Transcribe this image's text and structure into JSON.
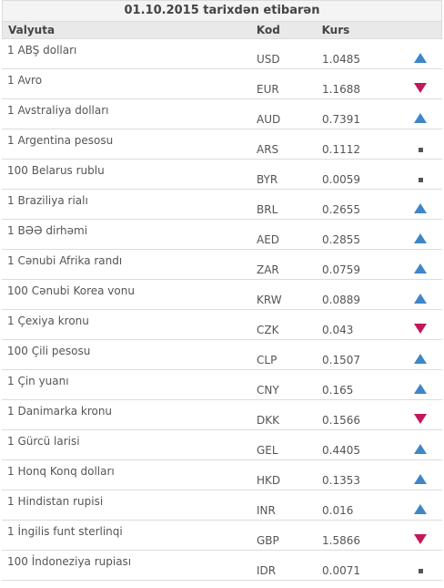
{
  "header": {
    "date_title": "01.10.2015 tarixdən etibarən"
  },
  "columns": {
    "currency": "Valyuta",
    "code": "Kod",
    "rate": "Kurs"
  },
  "colors": {
    "up": "#3f86c6",
    "down": "#c2185b",
    "flat": "#555555"
  },
  "rows": [
    {
      "name": "1 ABŞ dolları",
      "code": "USD",
      "rate": "1.0485",
      "trend": "up"
    },
    {
      "name": "1 Avro",
      "code": "EUR",
      "rate": "1.1688",
      "trend": "down"
    },
    {
      "name": "1 Avstraliya dolları",
      "code": "AUD",
      "rate": "0.7391",
      "trend": "up"
    },
    {
      "name": "1 Argentina pesosu",
      "code": "ARS",
      "rate": "0.1112",
      "trend": "flat"
    },
    {
      "name": "100 Belarus rublu",
      "code": "BYR",
      "rate": "0.0059",
      "trend": "flat"
    },
    {
      "name": "1 Braziliya rialı",
      "code": "BRL",
      "rate": "0.2655",
      "trend": "up"
    },
    {
      "name": "1 BƏƏ dirhəmi",
      "code": "AED",
      "rate": "0.2855",
      "trend": "up"
    },
    {
      "name": "1 Cənubi Afrika randı",
      "code": "ZAR",
      "rate": "0.0759",
      "trend": "up"
    },
    {
      "name": "100 Cənubi Korea vonu",
      "code": "KRW",
      "rate": "0.0889",
      "trend": "up"
    },
    {
      "name": "1 Çexiya kronu",
      "code": "CZK",
      "rate": "0.043",
      "trend": "down"
    },
    {
      "name": "100 Çili pesosu",
      "code": "CLP",
      "rate": "0.1507",
      "trend": "up"
    },
    {
      "name": "1 Çin yuanı",
      "code": "CNY",
      "rate": "0.165",
      "trend": "up"
    },
    {
      "name": "1 Danimarka kronu",
      "code": "DKK",
      "rate": "0.1566",
      "trend": "down"
    },
    {
      "name": "1 Gürcü larisi",
      "code": "GEL",
      "rate": "0.4405",
      "trend": "up"
    },
    {
      "name": "1 Honq Konq dolları",
      "code": "HKD",
      "rate": "0.1353",
      "trend": "up"
    },
    {
      "name": "1 Hindistan rupisi",
      "code": "INR",
      "rate": "0.016",
      "trend": "up"
    },
    {
      "name": "1 İngilis funt sterlinqi",
      "code": "GBP",
      "rate": "1.5866",
      "trend": "down"
    },
    {
      "name": "100 İndoneziya rupiası",
      "code": "IDR",
      "rate": "0.0071",
      "trend": "flat"
    }
  ]
}
